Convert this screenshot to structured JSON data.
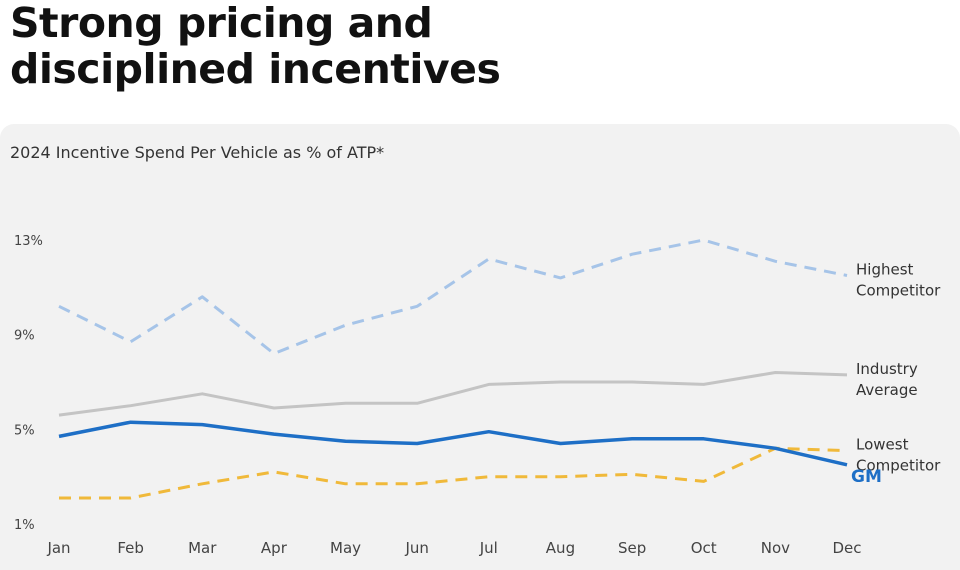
{
  "headline": {
    "line1": "Strong pricing and",
    "line2": "disciplined incentives"
  },
  "chart_data": {
    "type": "line",
    "title": "2024 Incentive Spend Per Vehicle as % of ATP*",
    "xlabel": "",
    "ylabel": "",
    "categories": [
      "Jan",
      "Feb",
      "Mar",
      "Apr",
      "May",
      "Jun",
      "Jul",
      "Aug",
      "Sep",
      "Oct",
      "Nov",
      "Dec"
    ],
    "yticks": [
      "13%",
      "9%",
      "5%",
      "1%"
    ],
    "ytick_values": [
      13,
      9,
      5,
      1
    ],
    "ylim": [
      1,
      13
    ],
    "grid": false,
    "series": [
      {
        "name": [
          "Highest",
          "Competitor"
        ],
        "style": "dashed",
        "color": "#a6c4e8",
        "label_color": "#333333",
        "values": [
          10.2,
          8.7,
          10.6,
          8.2,
          9.4,
          10.2,
          12.2,
          11.4,
          12.4,
          13.0,
          12.1,
          11.5
        ]
      },
      {
        "name": [
          "Industry",
          "Average"
        ],
        "style": "solid",
        "color": "#c4c4c4",
        "label_color": "#333333",
        "values": [
          5.6,
          6.0,
          6.5,
          5.9,
          6.1,
          6.1,
          6.9,
          7.0,
          7.0,
          6.9,
          7.4,
          7.3
        ]
      },
      {
        "name": [
          "Lowest",
          "Competitor"
        ],
        "style": "dashed",
        "color": "#f0b93a",
        "label_color": "#333333",
        "values": [
          2.1,
          2.1,
          2.7,
          3.2,
          2.7,
          2.7,
          3.0,
          3.0,
          3.1,
          2.8,
          4.2,
          4.1
        ]
      },
      {
        "name": [
          "GM"
        ],
        "style": "solid",
        "color": "#1e6fc6",
        "label_color": "#1e6fc6",
        "label_bold": true,
        "values": [
          4.7,
          5.3,
          5.2,
          4.8,
          4.5,
          4.4,
          4.9,
          4.4,
          4.6,
          4.6,
          4.2,
          3.5
        ]
      }
    ]
  }
}
